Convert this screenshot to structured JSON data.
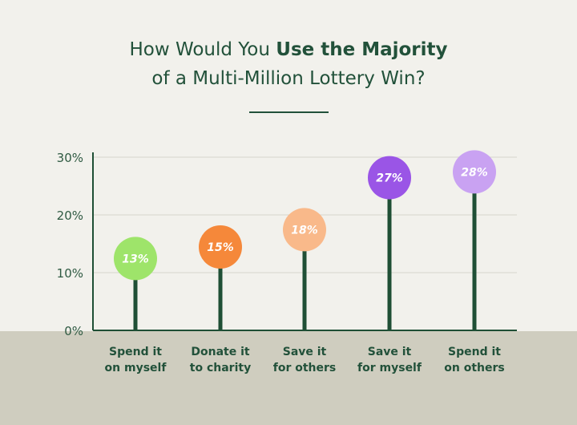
{
  "title": {
    "line1_prefix": "How Would You ",
    "line1_bold": "Use the Majority",
    "line2": "of a Multi-Million Lottery Win?"
  },
  "colors": {
    "text": "#22513a",
    "stem": "#1f4f35",
    "grid": "#d6d5cd",
    "card_background": "#f2f1ec",
    "band_background": "#cfcdbf"
  },
  "chart_data": {
    "type": "lollipop",
    "title": "How Would You Use the Majority of a Multi-Million Lottery Win?",
    "xlabel": "",
    "ylabel": "",
    "ylim": [
      0,
      30
    ],
    "yticks": [
      "0%",
      "10%",
      "20%",
      "30%"
    ],
    "grid": true,
    "categories": [
      [
        "Spend it",
        "on myself"
      ],
      [
        "Donate it",
        "to charity"
      ],
      [
        "Save it",
        "for others"
      ],
      [
        "Save it",
        "for myself"
      ],
      [
        "Spend it",
        "on others"
      ]
    ],
    "values": [
      13,
      15,
      18,
      27,
      28
    ],
    "value_labels": [
      "13%",
      "15%",
      "18%",
      "27%",
      "28%"
    ],
    "point_colors": [
      "#9ee46a",
      "#f5883a",
      "#f9b98a",
      "#9a55e6",
      "#c9a2f2"
    ]
  }
}
